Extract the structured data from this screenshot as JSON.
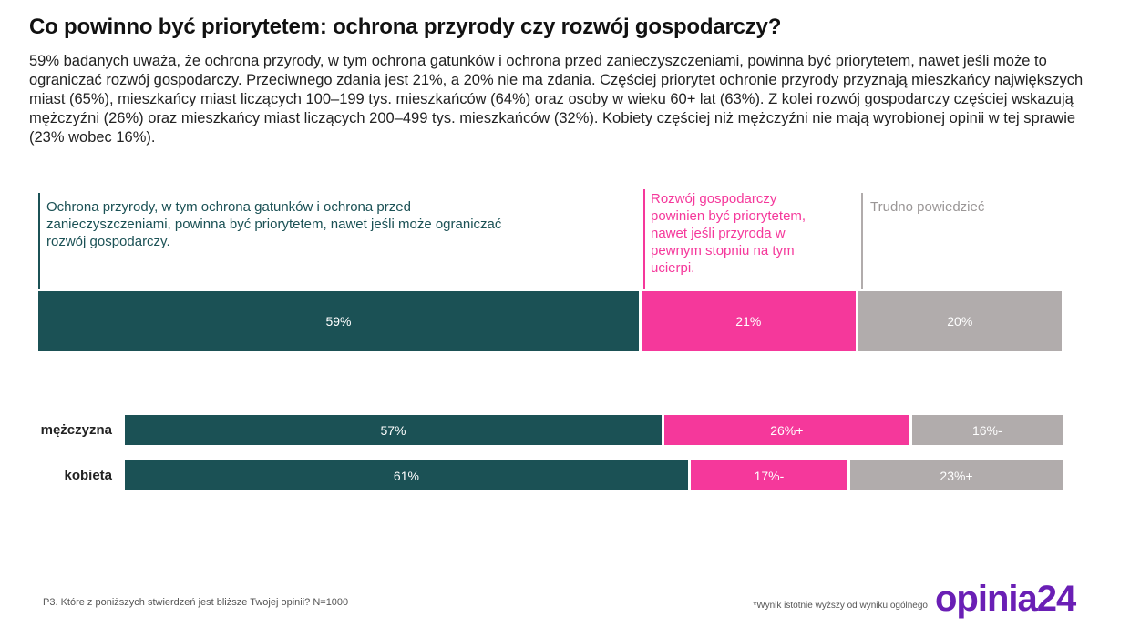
{
  "title": "Co powinno być priorytetem: ochrona przyrody czy rozwój gospodarczy?",
  "description": "59% badanych uważa, że ochrona przyrody, w tym ochrona gatunków i ochrona przed zanieczyszczeniami, powinna być priorytetem, nawet jeśli może to ograniczać rozwój gospodarczy. Przeciwnego zdania jest 21%, a 20% nie ma zdania. Częściej priorytet ochronie przyrody przyznają mieszkańcy największych miast (65%), mieszkańcy miast liczących 100–199 tys. mieszkańców (64%) oraz osoby w wieku 60+ lat (63%). Z kolei rozwój gospodarczy częściej wskazują mężczyźni (26%) oraz mieszkańcy miast liczących 200–499 tys. mieszkańców (32%). Kobiety częściej niż mężczyźni nie mają wyrobionej opinii w tej sprawie (23% wobec 16%).",
  "colors": {
    "nature": "#1b5155",
    "economy": "#f5389b",
    "unsure": "#b1acac",
    "logo": "#6a1fb5"
  },
  "chart_data": {
    "type": "bar",
    "orientation": "horizontal",
    "stacked": true,
    "unit": "%",
    "legend_placement": "top",
    "series": [
      {
        "name": "Ochrona przyrody, w tym ochrona gatunków i ochrona przed zanieczyszczeniami, powinna być priorytetem, nawet jeśli może ograniczać rozwój gospodarczy.",
        "color": "#1b5155"
      },
      {
        "name": "Rozwój gospodarczy powinien być priorytetem, nawet jeśli przyroda w pewnym stopniu na tym ucierpi.",
        "color": "#f5389b"
      },
      {
        "name": "Trudno powiedzieć",
        "color": "#b1acac"
      }
    ],
    "overall": {
      "values": [
        59,
        21,
        20
      ],
      "labels": [
        "59%",
        "21%",
        "20%"
      ]
    },
    "rows": [
      {
        "category": "mężczyzna",
        "values": [
          57,
          26,
          16
        ],
        "labels": [
          "57%",
          "26%+",
          "16%-"
        ]
      },
      {
        "category": "kobieta",
        "values": [
          61,
          17,
          23
        ],
        "labels": [
          "61%",
          "17%-",
          "23%+"
        ]
      }
    ]
  },
  "footer": {
    "question": "P3. Które z poniższych stwierdzeń jest bliższe Twojej opinii? N=1000",
    "note": "*Wynik istotnie wyższy od wyniku ogólnego",
    "logo": "opinia24"
  }
}
